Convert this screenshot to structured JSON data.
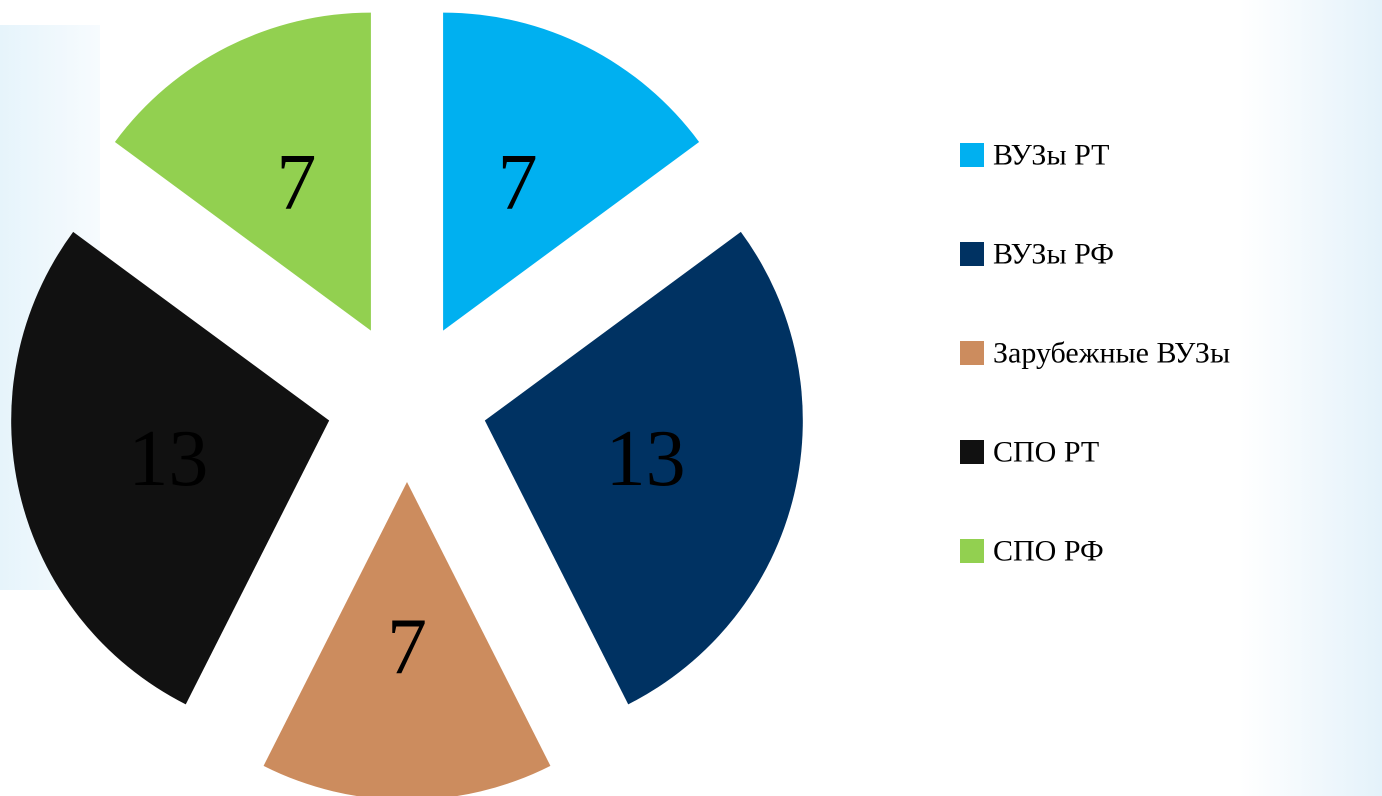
{
  "chart_data": {
    "type": "pie",
    "categories": [
      "ВУЗы РТ",
      "ВУЗы РФ",
      "Зарубежные ВУЗы",
      "СПО РТ",
      "СПО РФ"
    ],
    "values": [
      7,
      13,
      7,
      13,
      7
    ],
    "colors": [
      "#00b0f0",
      "#003262",
      "#cc8c5e",
      "#111111",
      "#92d050"
    ],
    "legend": "right"
  }
}
